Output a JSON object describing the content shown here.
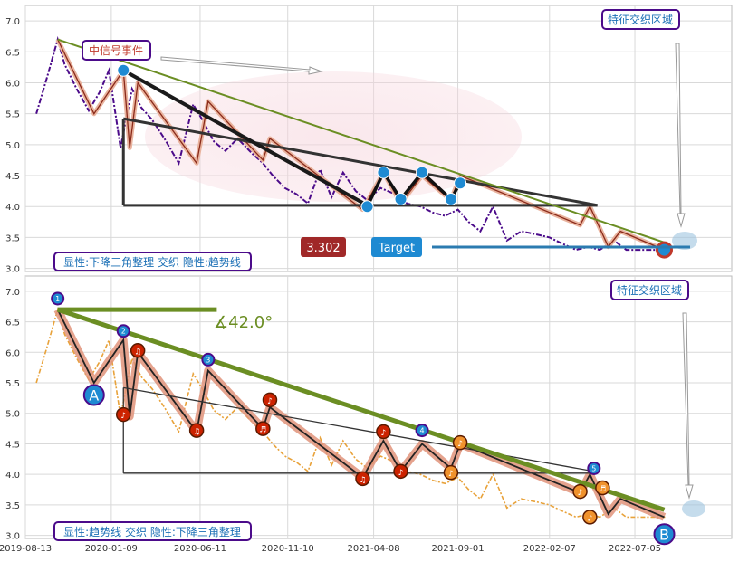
{
  "chart_data": [
    {
      "type": "line",
      "title": "",
      "ylim": [
        2.95,
        7.25
      ],
      "yticks": [
        3.0,
        3.5,
        4.0,
        4.5,
        5.0,
        5.5,
        6.0,
        6.5,
        7.0
      ],
      "grid": true,
      "price_series": {
        "x": [
          "2019-09-01",
          "2019-09-20",
          "2019-10-08",
          "2019-10-20",
          "2019-11-10",
          "2019-12-01",
          "2019-12-20",
          "2020-01-05",
          "2020-01-25",
          "2020-02-14",
          "2020-03-01",
          "2020-03-20",
          "2020-04-10",
          "2020-05-05",
          "2020-05-30",
          "2020-06-15",
          "2020-07-05",
          "2020-07-25",
          "2020-08-15",
          "2020-09-10",
          "2020-09-28",
          "2020-10-15",
          "2020-11-05",
          "2020-11-25",
          "2020-12-15",
          "2021-01-05",
          "2021-01-25",
          "2021-02-14",
          "2021-03-08",
          "2021-03-28",
          "2021-04-20",
          "2021-05-15",
          "2021-06-05",
          "2021-06-28",
          "2021-07-20",
          "2021-08-10",
          "2021-09-01",
          "2021-09-20",
          "2021-10-10",
          "2021-11-01",
          "2021-11-25",
          "2021-12-20",
          "2022-01-15",
          "2022-02-07",
          "2022-03-01",
          "2022-03-25",
          "2022-04-15",
          "2022-05-05",
          "2022-05-30",
          "2022-06-20",
          "2022-07-10",
          "2022-07-30",
          "2022-08-15",
          "2022-08-28"
        ],
        "y": [
          5.5,
          6.1,
          6.7,
          6.3,
          5.9,
          5.55,
          5.85,
          6.2,
          4.95,
          5.9,
          5.6,
          5.4,
          5.1,
          4.7,
          5.65,
          5.4,
          5.05,
          4.9,
          5.1,
          4.85,
          4.7,
          4.5,
          4.3,
          4.2,
          4.05,
          4.6,
          4.15,
          4.55,
          4.25,
          4.1,
          4.3,
          4.2,
          4.05,
          4.0,
          3.9,
          3.85,
          3.95,
          3.75,
          3.6,
          4.0,
          3.45,
          3.6,
          3.55,
          3.5,
          3.4,
          3.3,
          3.35,
          3.3,
          3.45,
          3.3,
          3.3,
          3.3,
          3.3,
          3.3
        ]
      },
      "zigzag": {
        "x": [
          "2019-10-08",
          "2019-12-10",
          "2020-01-30",
          "2020-02-10",
          "2020-02-24",
          "2020-06-05",
          "2020-06-25",
          "2020-09-28",
          "2020-10-10",
          "2021-03-20",
          "2021-04-25",
          "2021-05-25",
          "2021-07-01",
          "2021-08-20",
          "2021-09-05",
          "2022-04-01",
          "2022-04-18",
          "2022-05-20",
          "2022-06-10",
          "2022-08-25"
        ],
        "y": [
          6.7,
          5.5,
          6.2,
          4.95,
          6.0,
          4.7,
          5.7,
          4.75,
          5.1,
          3.95,
          4.55,
          4.05,
          4.5,
          4.1,
          4.5,
          3.7,
          4.0,
          3.35,
          3.6,
          3.3
        ]
      },
      "markers": [
        {
          "x": "2020-01-30",
          "y": 6.2
        },
        {
          "x": "2021-03-28",
          "y": 4.0
        },
        {
          "x": "2021-04-25",
          "y": 4.55
        },
        {
          "x": "2021-05-25",
          "y": 4.12
        },
        {
          "x": "2021-07-01",
          "y": 4.55
        },
        {
          "x": "2021-08-20",
          "y": 4.12
        },
        {
          "x": "2021-09-05",
          "y": 4.38
        },
        {
          "x": "2022-08-25",
          "y": 3.3
        }
      ],
      "trendline_green": {
        "x": [
          "2019-10-08",
          "2022-08-25"
        ],
        "y": [
          6.7,
          3.42
        ]
      },
      "triangle": {
        "vertical_x": "2020-01-30",
        "top": 5.42,
        "base": 4.02,
        "apex_x": "2021-03-28",
        "right_x": "2022-05-01",
        "right_y": 4.02
      },
      "upper_edge": {
        "x": [
          "2020-01-30",
          "2022-05-01"
        ],
        "y": [
          5.42,
          4.02
        ]
      },
      "arrow_note": {
        "from_x": "2020-03-10",
        "to_x": "2020-09-20",
        "y": 6.45
      },
      "target_price": 3.302,
      "target_label": "Target",
      "annotations": {
        "signal_event": "中信号事件",
        "zone_label": "特征交织区域",
        "pattern_label": "显性:下降三角整理 交织 隐性:趋势线"
      }
    },
    {
      "type": "line",
      "title": "",
      "ylim": [
        2.95,
        7.25
      ],
      "yticks": [
        3.0,
        3.5,
        4.0,
        4.5,
        5.0,
        5.5,
        6.0,
        6.5,
        7.0
      ],
      "xlim": [
        "2019-08-13",
        "2022-12-20"
      ],
      "xticks": [
        "2019-08-13",
        "2020-01-09",
        "2020-06-11",
        "2020-11-10",
        "2021-04-08",
        "2021-09-01",
        "2022-02-07",
        "2022-07-05"
      ],
      "grid": true,
      "price_series": {
        "x": [
          "2019-09-01",
          "2019-09-20",
          "2019-10-08",
          "2019-10-20",
          "2019-11-10",
          "2019-12-01",
          "2019-12-20",
          "2020-01-05",
          "2020-01-25",
          "2020-02-14",
          "2020-03-01",
          "2020-03-20",
          "2020-04-10",
          "2020-05-05",
          "2020-05-30",
          "2020-06-15",
          "2020-07-05",
          "2020-07-25",
          "2020-08-15",
          "2020-09-10",
          "2020-09-28",
          "2020-10-15",
          "2020-11-05",
          "2020-11-25",
          "2020-12-15",
          "2021-01-05",
          "2021-01-25",
          "2021-02-14",
          "2021-03-08",
          "2021-03-28",
          "2021-04-20",
          "2021-05-15",
          "2021-06-05",
          "2021-06-28",
          "2021-07-20",
          "2021-08-10",
          "2021-09-01",
          "2021-09-20",
          "2021-10-10",
          "2021-11-01",
          "2021-11-25",
          "2021-12-20",
          "2022-01-15",
          "2022-02-07",
          "2022-03-01",
          "2022-03-25",
          "2022-04-15",
          "2022-05-05",
          "2022-05-30",
          "2022-06-20",
          "2022-07-10",
          "2022-07-30",
          "2022-08-15",
          "2022-08-28"
        ],
        "y": [
          5.5,
          6.1,
          6.7,
          6.3,
          5.9,
          5.55,
          5.85,
          6.2,
          4.95,
          5.9,
          5.6,
          5.4,
          5.1,
          4.7,
          5.65,
          5.4,
          5.05,
          4.9,
          5.1,
          4.85,
          4.7,
          4.5,
          4.3,
          4.2,
          4.05,
          4.6,
          4.15,
          4.55,
          4.25,
          4.1,
          4.3,
          4.2,
          4.05,
          4.0,
          3.9,
          3.85,
          3.95,
          3.75,
          3.6,
          4.0,
          3.45,
          3.6,
          3.55,
          3.5,
          3.4,
          3.3,
          3.35,
          3.3,
          3.45,
          3.3,
          3.3,
          3.3,
          3.3,
          3.3
        ]
      },
      "zigzag": {
        "x": [
          "2019-10-08",
          "2019-12-10",
          "2020-01-30",
          "2020-02-10",
          "2020-02-24",
          "2020-06-05",
          "2020-06-25",
          "2020-09-28",
          "2020-10-10",
          "2021-03-20",
          "2021-04-25",
          "2021-05-25",
          "2021-07-01",
          "2021-08-20",
          "2021-09-05",
          "2022-04-01",
          "2022-04-18",
          "2022-05-20",
          "2022-06-10",
          "2022-08-25"
        ],
        "y": [
          6.7,
          5.5,
          6.2,
          4.95,
          6.0,
          4.7,
          5.7,
          4.75,
          5.1,
          3.95,
          4.55,
          4.05,
          4.5,
          4.1,
          4.5,
          3.7,
          4.0,
          3.35,
          3.6,
          3.3
        ]
      },
      "trendline_green": {
        "x": [
          "2019-10-08",
          "2022-08-25"
        ],
        "y": [
          6.7,
          3.42
        ]
      },
      "horizontal_ref": {
        "x": [
          "2019-10-08",
          "2020-07-10"
        ],
        "y": 6.7
      },
      "angle_label": "∡42.0°",
      "triangle": {
        "vertical_x": "2020-01-30",
        "top": 5.42,
        "base": 4.02,
        "right_x": "2022-05-01",
        "right_y": 4.04
      },
      "numbered_points": [
        {
          "label": "1",
          "x": "2019-10-08",
          "y": 6.88
        },
        {
          "label": "2",
          "x": "2020-01-30",
          "y": 6.35
        },
        {
          "label": "3",
          "x": "2020-06-25",
          "y": 5.88
        },
        {
          "label": "4",
          "x": "2021-07-01",
          "y": 4.72
        },
        {
          "label": "5",
          "x": "2022-04-25",
          "y": 4.1
        }
      ],
      "note_markers": [
        {
          "label": "♪",
          "x": "2020-01-30",
          "y": 4.98,
          "color": "#cc2200"
        },
        {
          "label": "♫",
          "x": "2020-02-24",
          "y": 6.03,
          "color": "#cc2200"
        },
        {
          "label": "♫",
          "x": "2020-06-05",
          "y": 4.72,
          "color": "#cc2200"
        },
        {
          "label": "♬",
          "x": "2020-09-28",
          "y": 4.75,
          "color": "#cc2200"
        },
        {
          "label": "♪",
          "x": "2020-10-10",
          "y": 5.22,
          "color": "#cc2200"
        },
        {
          "label": "♫",
          "x": "2021-03-20",
          "y": 3.93,
          "color": "#cc2200"
        },
        {
          "label": "♪",
          "x": "2021-04-25",
          "y": 4.7,
          "color": "#cc2200"
        },
        {
          "label": "♪",
          "x": "2021-05-25",
          "y": 4.05,
          "color": "#cc2200"
        },
        {
          "label": "♪",
          "x": "2021-08-20",
          "y": 4.03,
          "color": "#f0922d"
        },
        {
          "label": "♪",
          "x": "2021-09-05",
          "y": 4.52,
          "color": "#f0922d"
        },
        {
          "label": "♪",
          "x": "2022-04-01",
          "y": 3.72,
          "color": "#f0922d"
        },
        {
          "label": "♬",
          "x": "2022-05-10",
          "y": 3.78,
          "color": "#f0922d"
        },
        {
          "label": "♪",
          "x": "2022-04-18",
          "y": 3.3,
          "color": "#f0922d"
        }
      ],
      "letter_points": [
        {
          "label": "A",
          "x": "2019-12-10",
          "y": 5.3
        },
        {
          "label": "B",
          "x": "2022-08-25",
          "y": 3.02
        }
      ],
      "annotations": {
        "zone_label": "特征交织区域",
        "pattern_label": "显性:趋势线 交织 隐性:下降三角整理"
      }
    }
  ],
  "colors": {
    "price_top": "#4b0b8a",
    "price_bottom": "#e8a23a",
    "trend_green": "#6b8e23",
    "triangle": "#333333",
    "marker_blue": "#1e8ad2",
    "box_border": "#4b0b8a",
    "label_text": "#1a6fb5",
    "target_box": "#1e8ad2",
    "price_box": "#a02828"
  }
}
